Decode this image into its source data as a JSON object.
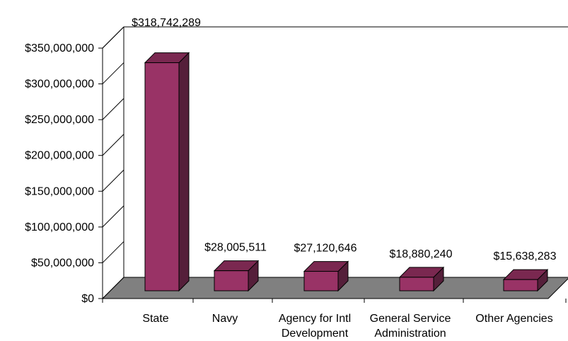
{
  "chart_data": {
    "type": "bar",
    "categories": [
      [
        "State"
      ],
      [
        "Navy"
      ],
      [
        "Agency for Intl",
        "Development"
      ],
      [
        "General Service",
        "Administration"
      ],
      [
        "Other Agencies"
      ]
    ],
    "values": [
      318742289,
      28005511,
      27120646,
      18880240,
      15638283
    ],
    "data_labels": [
      "$318,742,289",
      "$28,005,511",
      "$27,120,646",
      "$18,880,240",
      "$15,638,283"
    ],
    "y_ticks": [
      0,
      50000000,
      100000000,
      150000000,
      200000000,
      250000000,
      300000000,
      350000000
    ],
    "y_tick_labels": [
      "$0",
      "$50,000,000",
      "$100,000,000",
      "$150,000,000",
      "$200,000,000",
      "$250,000,000",
      "$300,000,000",
      "$350,000,000"
    ],
    "ylim": [
      0,
      350000000
    ],
    "grid": false,
    "legend": "none",
    "style": "3d",
    "colors": {
      "bar_front": "#993366",
      "bar_side": "#551f3a",
      "bar_top": "#7a2850",
      "floor": "#808080",
      "line": "#000000"
    }
  }
}
